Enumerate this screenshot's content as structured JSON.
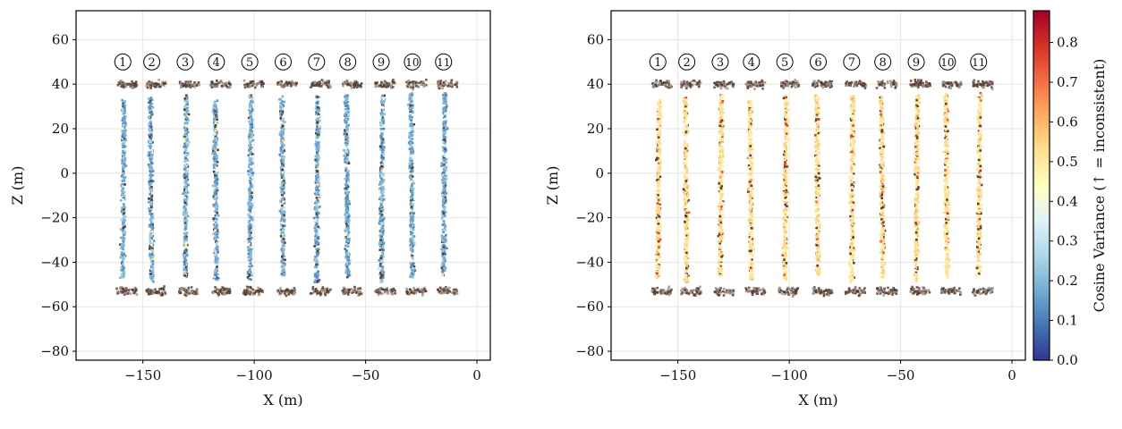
{
  "chart_data": [
    {
      "type": "scatter",
      "panel": "left",
      "xlabel": "X (m)",
      "ylabel": "Z (m)",
      "xlim": [
        -180,
        6
      ],
      "ylim": [
        -84,
        73
      ],
      "xticks": [
        -150,
        -100,
        -50,
        0
      ],
      "yticks": [
        60,
        40,
        20,
        0,
        -20,
        -40,
        -60,
        -80
      ],
      "xtick_labels": [
        "−150",
        "−100",
        "−50",
        "0"
      ],
      "ytick_labels": [
        "60",
        "40",
        "20",
        "0",
        "−20",
        "−40",
        "−60",
        "−80"
      ],
      "grid": true,
      "typical_cosine_variance": 0.18,
      "lanes": [
        {
          "label": "1",
          "x": -159,
          "z_range": [
            -47,
            33
          ]
        },
        {
          "label": "2",
          "x": -146,
          "z_range": [
            -49,
            34
          ]
        },
        {
          "label": "3",
          "x": -131,
          "z_range": [
            -47,
            35
          ]
        },
        {
          "label": "4",
          "x": -117,
          "z_range": [
            -48,
            33
          ]
        },
        {
          "label": "5",
          "x": -102,
          "z_range": [
            -48,
            35
          ]
        },
        {
          "label": "6",
          "x": -87,
          "z_range": [
            -46,
            35
          ]
        },
        {
          "label": "7",
          "x": -72,
          "z_range": [
            -49,
            35
          ]
        },
        {
          "label": "8",
          "x": -58,
          "z_range": [
            -47,
            35
          ]
        },
        {
          "label": "9",
          "x": -43,
          "z_range": [
            -49,
            35
          ]
        },
        {
          "label": "10",
          "x": -29,
          "z_range": [
            -47,
            36
          ]
        },
        {
          "label": "11",
          "x": -15,
          "z_range": [
            -46,
            36
          ]
        }
      ]
    },
    {
      "type": "scatter",
      "panel": "right",
      "xlabel": "X (m)",
      "ylabel": "Z (m)",
      "xlim": [
        -180,
        6
      ],
      "ylim": [
        -84,
        73
      ],
      "xticks": [
        -150,
        -100,
        -50,
        0
      ],
      "yticks": [
        60,
        40,
        20,
        0,
        -20,
        -40,
        -60,
        -80
      ],
      "xtick_labels": [
        "−150",
        "−100",
        "−50",
        "0"
      ],
      "ytick_labels": [
        "60",
        "40",
        "20",
        "0",
        "−20",
        "−40",
        "−60",
        "−80"
      ],
      "grid": true,
      "typical_cosine_variance": 0.52,
      "lanes_same_as": "left"
    }
  ],
  "colorbar": {
    "label": "Cosine Variance (↑ = inconsistent)",
    "colormap": "RdYlBu_r",
    "range": [
      0.0,
      0.88
    ],
    "ticks": [
      0.0,
      0.1,
      0.2,
      0.3,
      0.4,
      0.5,
      0.6,
      0.7,
      0.8
    ],
    "tick_labels": [
      "0.0",
      "0.1",
      "0.2",
      "0.3",
      "0.4",
      "0.5",
      "0.6",
      "0.7",
      "0.8"
    ]
  },
  "colors": {
    "unscored_points": "#5a4030",
    "grid": "#e6e6e6",
    "axes": "#000000"
  }
}
